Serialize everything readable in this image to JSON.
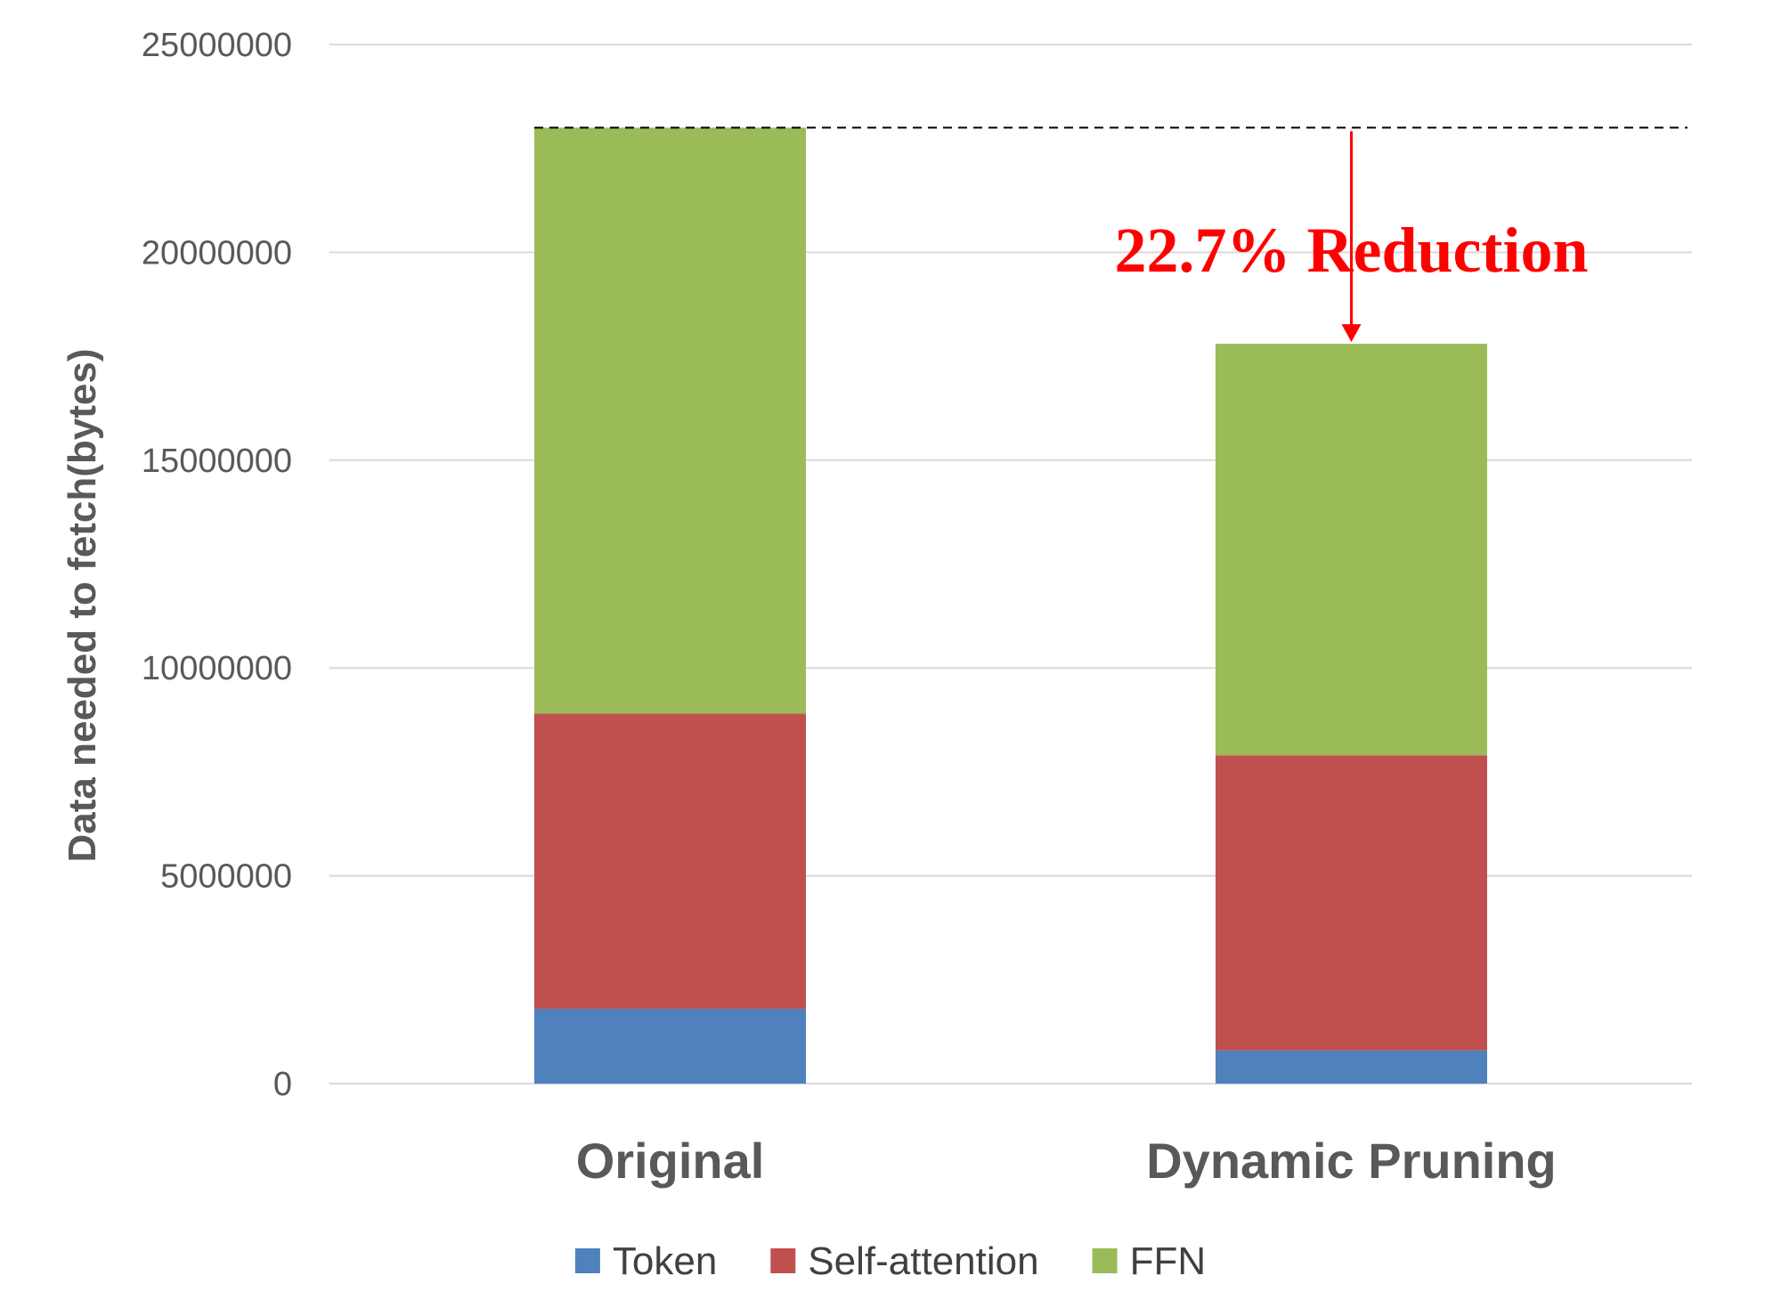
{
  "chart_data": {
    "type": "bar",
    "stacked": true,
    "categories": [
      "Original",
      "Dynamic Pruning"
    ],
    "series": [
      {
        "name": "Token",
        "values": [
          1800000,
          800000
        ],
        "color": "#4f81bd"
      },
      {
        "name": "Self-attention",
        "values": [
          7100000,
          7100000
        ],
        "color": "#c0504d"
      },
      {
        "name": "FFN",
        "values": [
          14100000,
          9900000
        ],
        "color": "#9bbb59"
      }
    ],
    "ylabel": "Data needed to fetch(bytes)",
    "xlabel": "",
    "ylim": [
      0,
      25000000
    ],
    "yticks": [
      0,
      5000000,
      10000000,
      15000000,
      20000000,
      25000000
    ],
    "ytick_labels": [
      "0",
      "5000000",
      "10000000",
      "15000000",
      "20000000",
      "25000000"
    ],
    "grid": true,
    "legend": "bottom",
    "annotation": {
      "text": "22.7% Reduction",
      "color": "#ff0000",
      "from_value": 23000000,
      "to_value": 17800000
    }
  }
}
